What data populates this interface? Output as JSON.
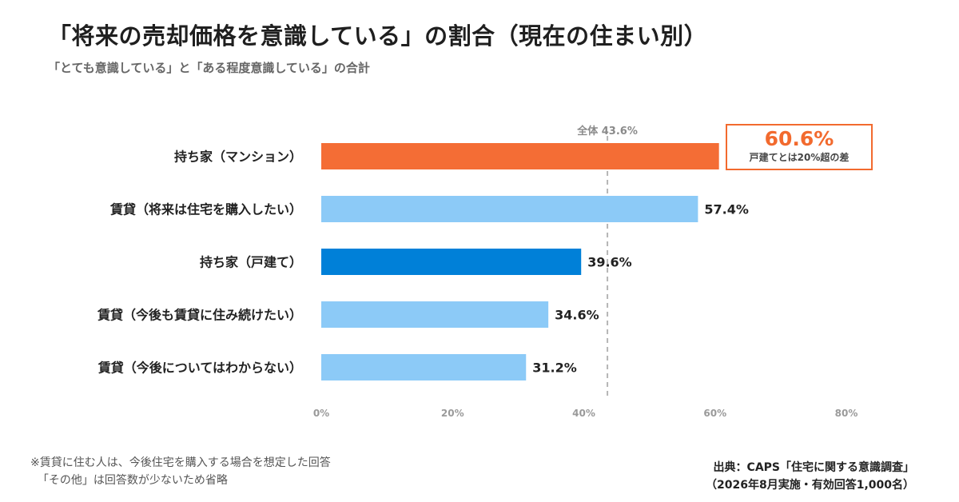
{
  "header": {
    "title": "「将来の売却価格を意識している」の割合（現在の住まい別）",
    "subtitle": "「とても意識している」と「ある程度意識している」の合計"
  },
  "chart_data": {
    "type": "bar",
    "orientation": "horizontal",
    "categories": [
      "持ち家（マンション）",
      "賃貸（将来は住宅を購入したい）",
      "持ち家（戸建て）",
      "賃貸（今後も賃貸に住み続けたい）",
      "賃貸（今後についてはわからない）"
    ],
    "values": [
      60.6,
      57.4,
      39.6,
      34.6,
      31.2
    ],
    "value_labels": [
      "",
      "57.4%",
      "39.6%",
      "34.6%",
      "31.2%"
    ],
    "bar_colors": [
      "#f46d35",
      "#8ccaf7",
      "#0080d8",
      "#8ccaf7",
      "#8ccaf7"
    ],
    "xlim": [
      0,
      80
    ],
    "x_ticks": [
      0,
      20,
      40,
      60,
      80
    ],
    "x_tick_labels": [
      "0%",
      "20%",
      "40%",
      "60%",
      "80%"
    ],
    "reference_line": {
      "value": 43.6,
      "label": "全体 43.6%"
    },
    "callout": {
      "value_label": "60.6%",
      "note": "戸建てとは20%超の差"
    },
    "grid": false,
    "legend": "none"
  },
  "footer": {
    "note_lines": [
      "※賃貸に住む人は、今後住宅を購入する場合を想定した回答",
      "「その他」は回答数が少ないため省略"
    ],
    "source_lines": [
      "出典：CAPS「住宅に関する意識調査」",
      "（2026年8月実施・有効回答1,000名）"
    ]
  },
  "colors": {
    "accent_orange": "#f26a2e",
    "light_blue": "#8ccaf7",
    "dark_blue": "#0080d8",
    "reference_line": "#b5b5b5"
  }
}
